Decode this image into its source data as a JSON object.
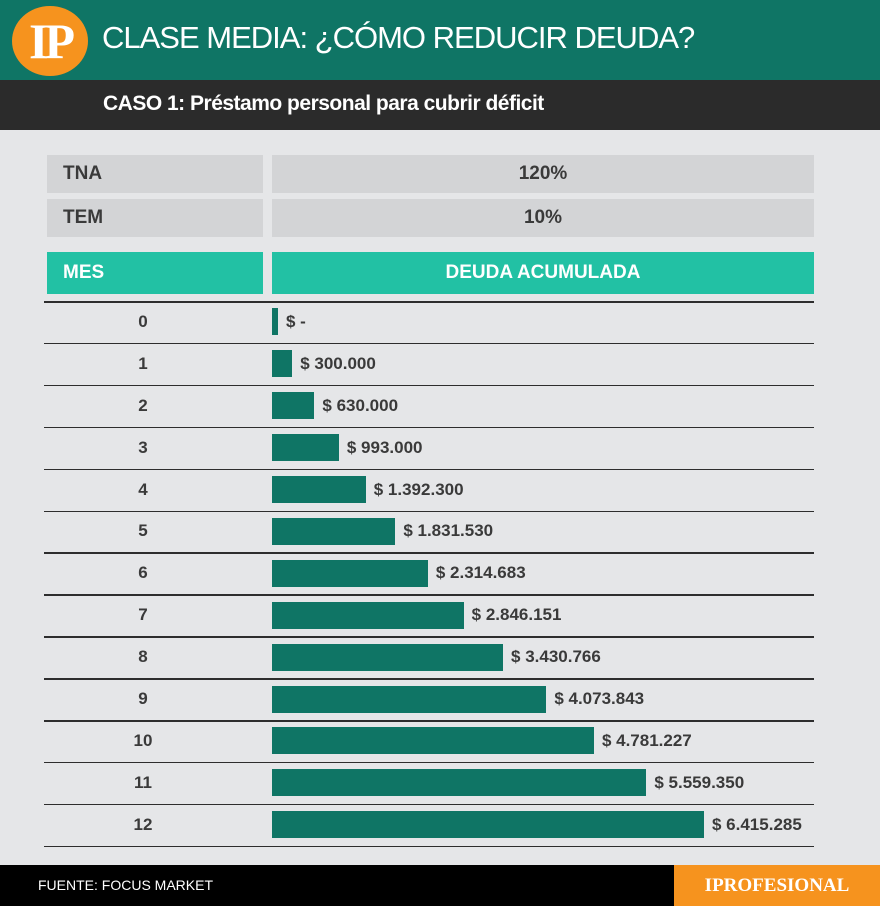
{
  "header": {
    "logo_text": "IP",
    "title": "CLASE MEDIA: ¿CÓMO REDUCIR DEUDA?",
    "subtitle": "CASO 1: Préstamo personal para cubrir déficit"
  },
  "params": {
    "tna_label": "TNA",
    "tna_value": "120%",
    "tem_label": "TEM",
    "tem_value": "10%"
  },
  "colors": {
    "primary": "#0f7565",
    "accent": "#22c1a4",
    "orange": "#f6931e",
    "dark": "#2b2b2b"
  },
  "chart_data": {
    "type": "bar",
    "orientation": "horizontal",
    "xlabel": "MES",
    "ylabel": "DEUDA ACUMULADA",
    "categories": [
      "0",
      "1",
      "2",
      "3",
      "4",
      "5",
      "6",
      "7",
      "8",
      "9",
      "10",
      "11",
      "12"
    ],
    "values": [
      0,
      300000,
      630000,
      993000,
      1392300,
      1831530,
      2314683,
      2846151,
      3430766,
      4073843,
      4781227,
      5559350,
      6415285
    ],
    "value_labels": [
      "$ -",
      "$ 300.000",
      "$ 630.000",
      "$ 993.000",
      "$ 1.392.300",
      "$ 1.831.530",
      "$ 2.314.683",
      "$ 2.846.151",
      "$ 3.430.766",
      "$ 4.073.843",
      "$ 4.781.227",
      "$ 5.559.350",
      "$ 6.415.285"
    ]
  },
  "footer": {
    "source": "FUENTE: FOCUS MARKET",
    "brand": "IPROFESIONAL"
  }
}
